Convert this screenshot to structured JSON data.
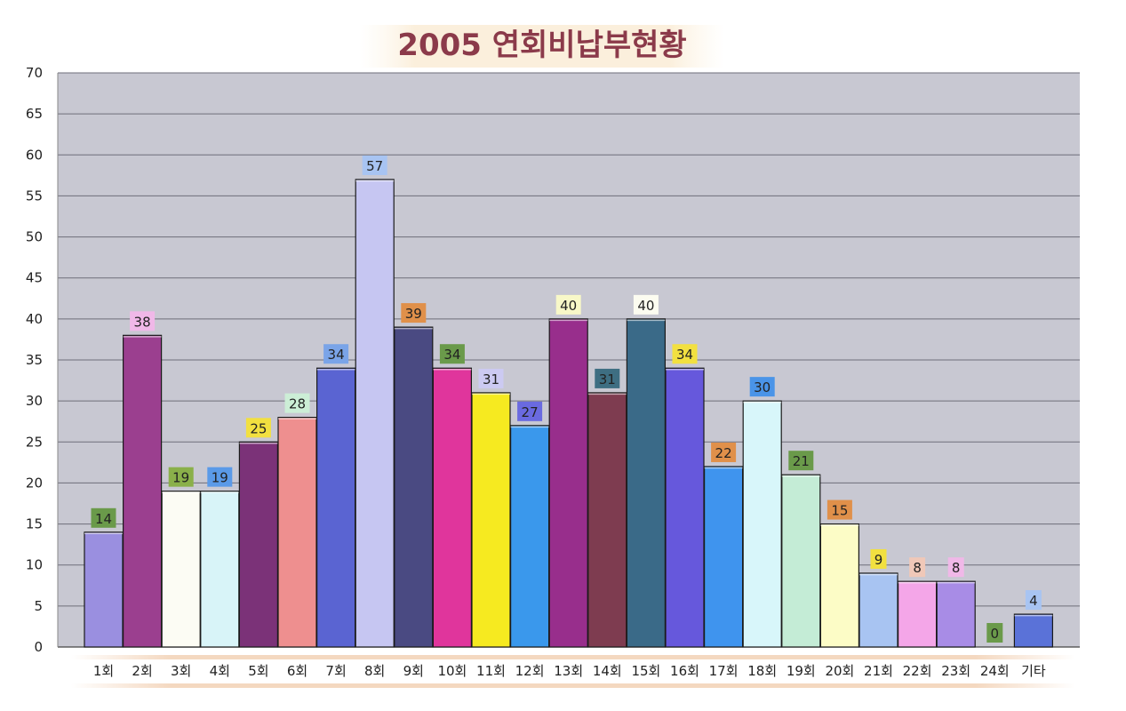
{
  "chart_data": {
    "type": "bar",
    "title": "2005 연회비납부현황",
    "xlabel": "",
    "ylabel": "",
    "ylim": [
      0,
      70
    ],
    "ytick_step": 5,
    "grid": true,
    "legend": "none",
    "categories": [
      "1회",
      "2회",
      "3회",
      "4회",
      "5회",
      "6회",
      "7회",
      "8회",
      "9회",
      "10회",
      "11회",
      "12회",
      "13회",
      "14회",
      "15회",
      "16회",
      "17회",
      "18회",
      "19회",
      "20회",
      "21회",
      "22회",
      "23회",
      "24회",
      "기타"
    ],
    "values": [
      14,
      38,
      19,
      19,
      25,
      28,
      34,
      57,
      39,
      34,
      31,
      27,
      40,
      31,
      40,
      34,
      22,
      30,
      21,
      15,
      9,
      8,
      8,
      0,
      4
    ],
    "bar_colors": [
      "#9a8fe0",
      "#9b3f8f",
      "#fcfcf4",
      "#d8f4f8",
      "#7b3278",
      "#ee8f8f",
      "#5a64d2",
      "#c6c6f2",
      "#4a4a82",
      "#e0359c",
      "#f6ea20",
      "#3a98ec",
      "#982e8c",
      "#7e3c50",
      "#3a6a88",
      "#6658dc",
      "#3f94ee",
      "#d8f6fa",
      "#c4ecd6",
      "#fcfcc6",
      "#a8c4f2",
      "#f4a6e8",
      "#a88ce6",
      "#a0cfa0",
      "#5a72d8"
    ],
    "label_colors": [
      "#6a9a4a",
      "#f0b8e8",
      "#8ab04a",
      "#5a9ae8",
      "#f2e040",
      "#cceed6",
      "#7aa4e8",
      "#a8c4f2",
      "#e0904a",
      "#6a9a4a",
      "#cccaf2",
      "#6a6ae0",
      "#f8f8c8",
      "#3e6e82",
      "#fcfcf0",
      "#f2e040",
      "#e0904a",
      "#4a94e8",
      "#6a9a4a",
      "#e0904a",
      "#f2e040",
      "#f0c8b8",
      "#f0b8e8",
      "#6a9a4a",
      "#a8c4f2"
    ],
    "plot_bg": "#c8c8d2",
    "title_color": "#8b3a4a"
  }
}
